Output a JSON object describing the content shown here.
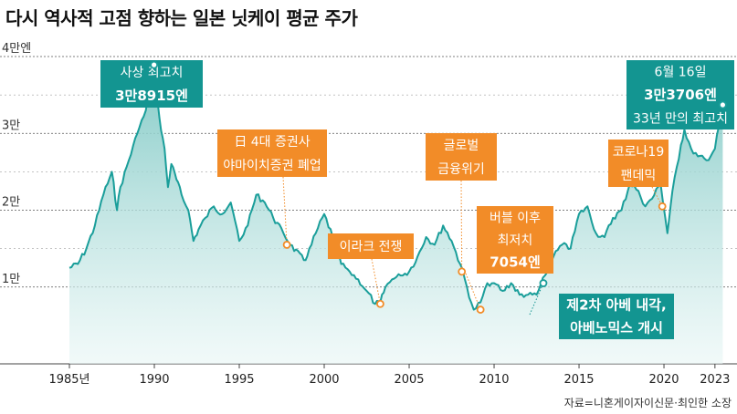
{
  "title": "다시 역사적 고점 향하는 일본 닛케이 평균 주가",
  "source": "자료=니혼게이자이신문·최인한 소장",
  "colors": {
    "line": "#1a9e9a",
    "teal_box": "#139591",
    "orange_box": "#f28c28",
    "orange_marker": "#f28c28",
    "fill_top": "#8fcfcc",
    "fill_bottom": "#eef8f7"
  },
  "chart_data": {
    "type": "area",
    "title": "다시 역사적 고점 향하는 일본 닛케이 평균 주가",
    "y_unit_label": "엔",
    "ylim": [
      0,
      40000
    ],
    "y_ticks": [
      {
        "value": 10000,
        "label": "1만"
      },
      {
        "value": 20000,
        "label": "2만"
      },
      {
        "value": 30000,
        "label": "3만"
      },
      {
        "value": 40000,
        "label": "4만엔"
      }
    ],
    "xlim": [
      1985,
      2023.6
    ],
    "x_ticks": [
      {
        "value": 1985,
        "label": "1985년"
      },
      {
        "value": 1990,
        "label": "1990"
      },
      {
        "value": 1995,
        "label": "1995"
      },
      {
        "value": 2000,
        "label": "2000"
      },
      {
        "value": 2005,
        "label": "2005"
      },
      {
        "value": 2010,
        "label": "2010"
      },
      {
        "value": 2015,
        "label": "2015"
      },
      {
        "value": 2020,
        "label": "2020"
      },
      {
        "value": 2023,
        "label": "2023"
      }
    ],
    "grid": "dotted horizontal",
    "series": [
      {
        "x": [
          1985.0,
          1985.5,
          1986.0,
          1986.5,
          1987.0,
          1987.5,
          1987.8,
          1988.0,
          1988.5,
          1989.0,
          1989.5,
          1990.0,
          1990.3,
          1990.6,
          1990.8,
          1991.0,
          1991.3,
          1991.6,
          1992.0,
          1992.3,
          1992.6,
          1993.0,
          1993.5,
          1994.0,
          1994.5,
          1995.0,
          1995.5,
          1996.0,
          1996.5,
          1997.0,
          1997.6,
          1998.0,
          1998.8,
          1999.0,
          1999.5,
          2000.0,
          2000.5,
          2001.0,
          2001.5,
          2002.0,
          2002.5,
          2003.0,
          2003.3,
          2003.6,
          2004.0,
          2004.5,
          2005.0,
          2005.5,
          2006.0,
          2006.5,
          2007.0,
          2007.5,
          2008.0,
          2008.4,
          2008.8,
          2009.2,
          2009.6,
          2010.0,
          2010.5,
          2011.0,
          2011.5,
          2012.0,
          2012.5,
          2013.0,
          2013.5,
          2014.0,
          2014.5,
          2015.0,
          2015.5,
          2016.0,
          2016.5,
          2017.0,
          2017.5,
          2018.0,
          2018.5,
          2018.9,
          2019.3,
          2019.8,
          2020.2,
          2020.5,
          2021.0,
          2021.2,
          2021.6,
          2022.0,
          2022.5,
          2023.0,
          2023.46
        ],
        "values": [
          12500,
          13000,
          15000,
          18000,
          22000,
          25000,
          20000,
          23000,
          26500,
          30000,
          33000,
          38915,
          32000,
          28000,
          23000,
          26000,
          24000,
          22000,
          20000,
          16000,
          17500,
          19000,
          20500,
          19500,
          21000,
          16000,
          18000,
          22000,
          21000,
          19000,
          17000,
          15500,
          13500,
          14000,
          17000,
          19500,
          16500,
          13000,
          12000,
          11000,
          9500,
          7800,
          8000,
          10000,
          11000,
          11500,
          12000,
          14000,
          16500,
          15500,
          18000,
          16000,
          13000,
          10000,
          7054,
          8000,
          10500,
          10500,
          9500,
          10500,
          9000,
          9000,
          9000,
          11500,
          14000,
          15500,
          15000,
          19500,
          20500,
          17000,
          16500,
          19000,
          20000,
          23500,
          22500,
          20500,
          21500,
          23500,
          17000,
          22500,
          28500,
          30500,
          28000,
          27000,
          26500,
          28000,
          33706
        ]
      }
    ],
    "annotations": [
      {
        "x": 1989.98,
        "y": 38915,
        "style": "teal",
        "lines": [
          "사상 최고치"
        ],
        "bold": [
          "3만8915엔"
        ]
      },
      {
        "x": 1997.8,
        "y": 15500,
        "style": "orange",
        "lines": [
          "日 4대 증권사",
          "야마이치증권 폐업"
        ],
        "bold": []
      },
      {
        "x": 2003.3,
        "y": 7800,
        "style": "orange",
        "lines": [
          "이라크 전쟁"
        ],
        "bold": []
      },
      {
        "x": 2008.1,
        "y": 12000,
        "style": "orange",
        "lines": [
          "글로벌",
          "금융위기"
        ],
        "bold": []
      },
      {
        "x": 2009.2,
        "y": 7054,
        "style": "orange",
        "lines": [
          "버블 이후",
          "최저치"
        ],
        "bold": [
          "7054엔"
        ]
      },
      {
        "x": 2012.9,
        "y": 10500,
        "style": "teal",
        "lines": [],
        "bold": [
          "제2차 아베 내각,",
          "아베노믹스 개시"
        ]
      },
      {
        "x": 2019.9,
        "y": 20500,
        "style": "orange",
        "lines": [
          "코로나19",
          "팬데믹"
        ],
        "bold": []
      },
      {
        "x": 2023.46,
        "y": 33706,
        "style": "teal",
        "lines": [
          "6월 16일"
        ],
        "bold": [
          "3만3706엔"
        ],
        "extra": [
          "33년 만의 최고치"
        ]
      }
    ]
  }
}
